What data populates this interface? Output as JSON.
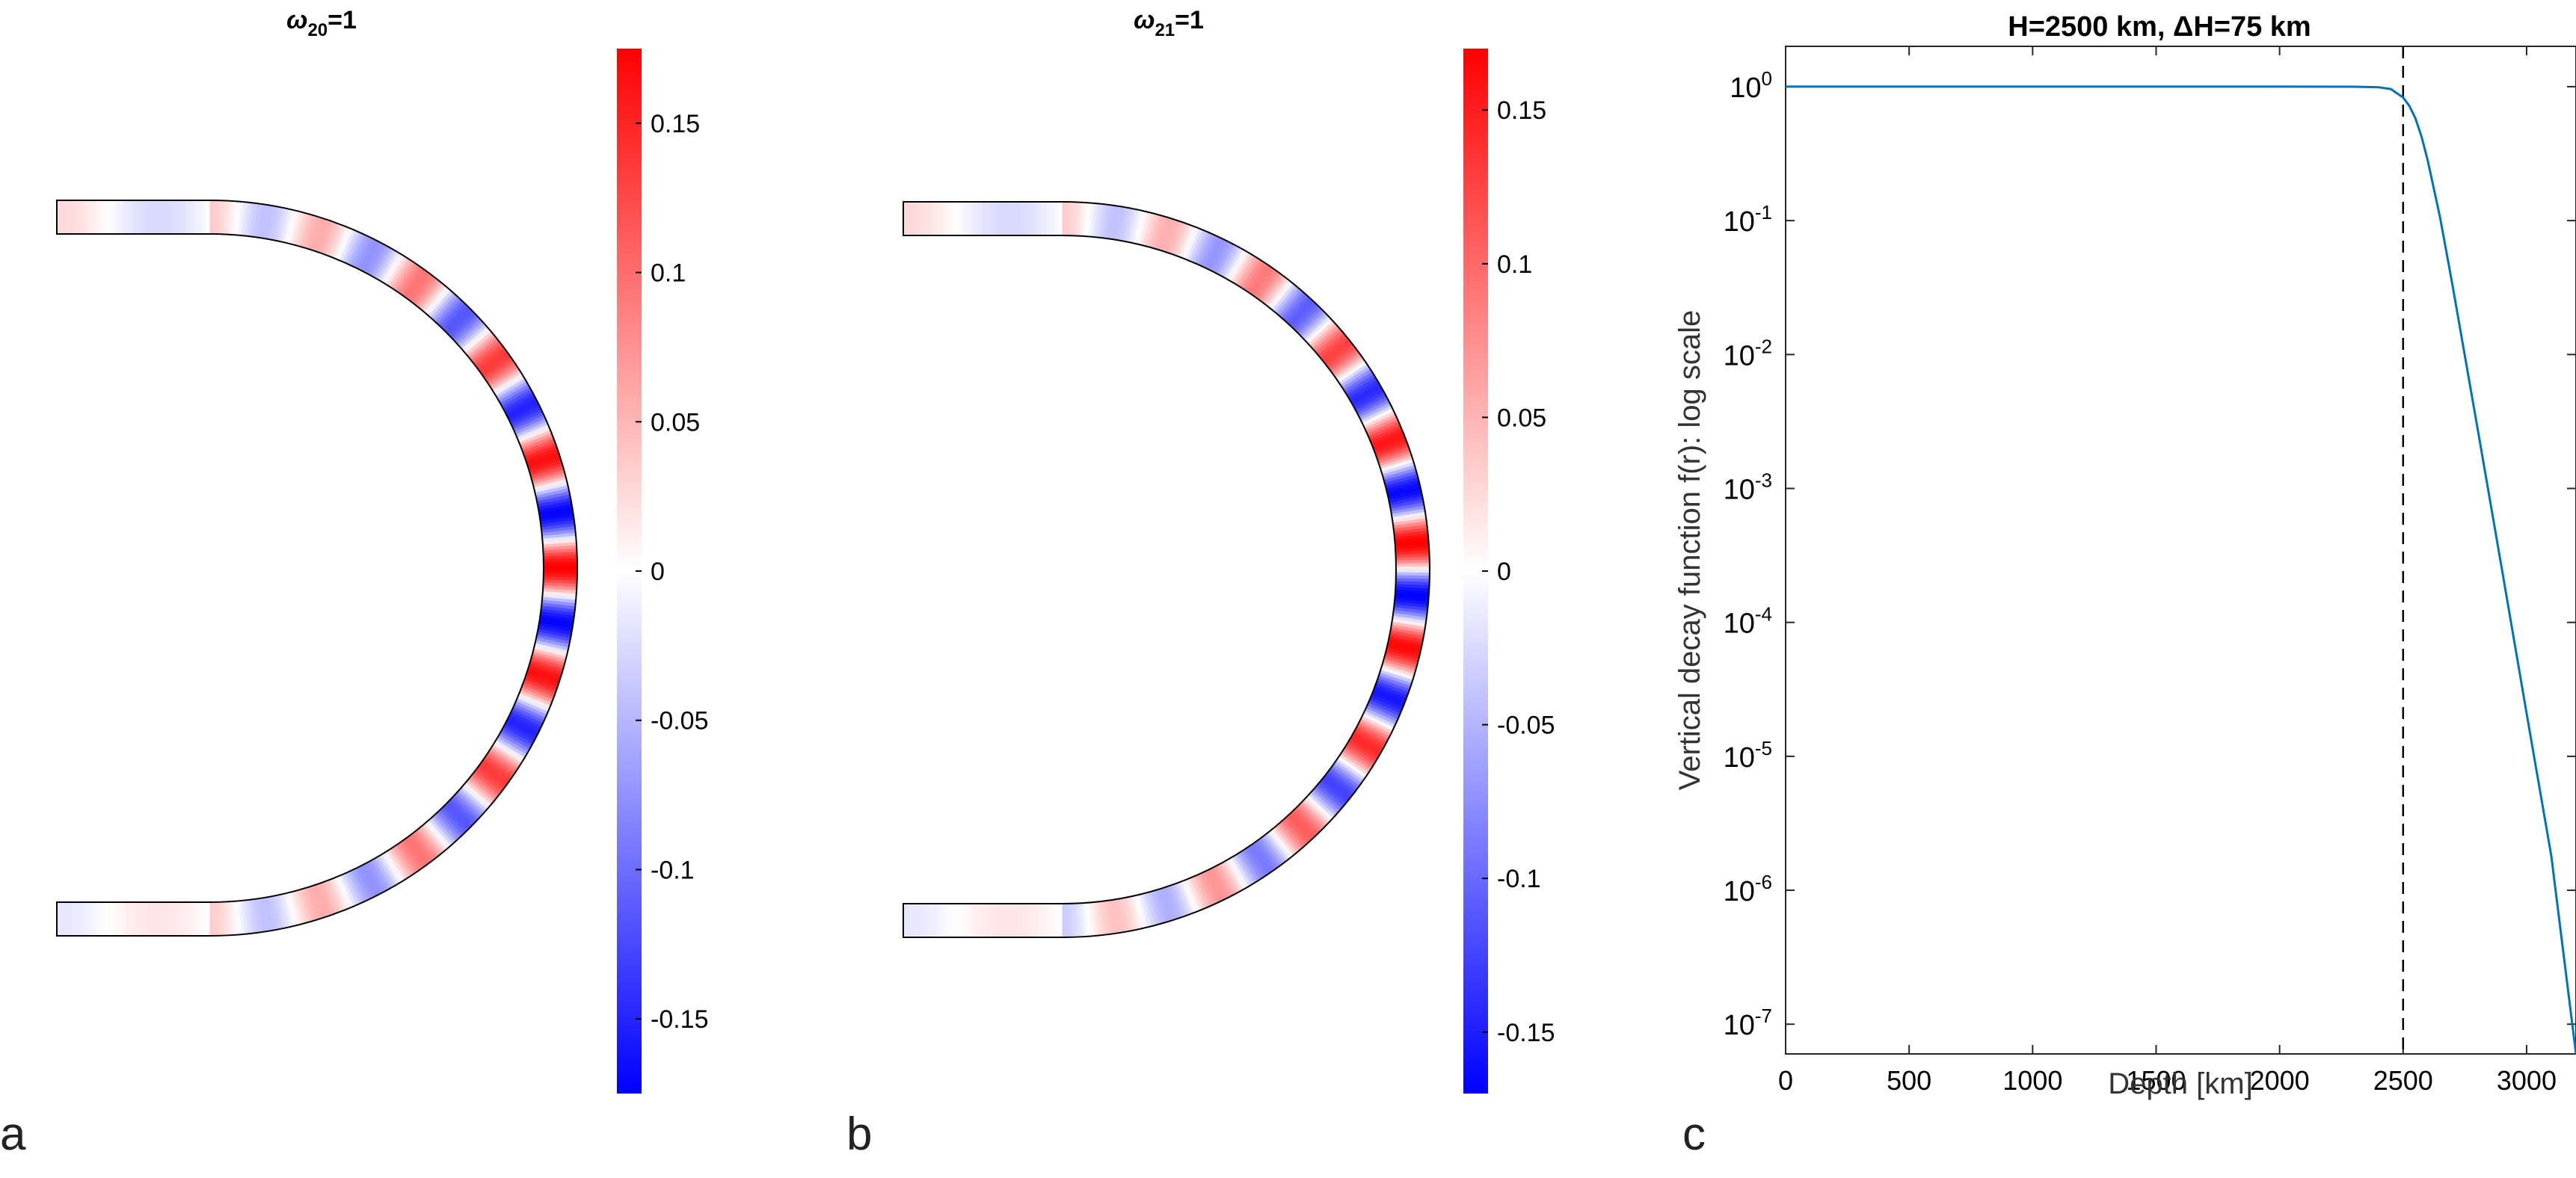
{
  "figure": {
    "panel_labels": [
      "a",
      "b",
      "c"
    ]
  },
  "chart_data": [
    {
      "type": "heatmap",
      "panel": "a",
      "title_symbol": "ω",
      "title_subscript": "20",
      "title_suffix": "=1",
      "shell": "half-annulus",
      "mode_wavenumber": 20,
      "colormap": "blue-white-red",
      "clim": [
        -0.175,
        0.175
      ],
      "colorbar_ticks": [
        0.15,
        0.1,
        0.05,
        0,
        -0.05,
        -0.1,
        -0.15
      ],
      "colorbar_labels": [
        "0.15",
        "0.1",
        "0.05",
        "0",
        "-0.05",
        "-0.1",
        "-0.15"
      ]
    },
    {
      "type": "heatmap",
      "panel": "b",
      "title_symbol": "ω",
      "title_subscript": "21",
      "title_suffix": "=1",
      "shell": "half-annulus",
      "mode_wavenumber": 21,
      "colormap": "blue-white-red",
      "clim": [
        -0.17,
        0.17
      ],
      "colorbar_ticks": [
        0.15,
        0.1,
        0.05,
        0,
        -0.05,
        -0.1,
        -0.15
      ],
      "colorbar_labels": [
        "0.15",
        "0.1",
        "0.05",
        "0",
        "-0.05",
        "-0.1",
        "-0.15"
      ]
    },
    {
      "type": "line",
      "panel": "c",
      "title": "H=2500 km, ΔH=75 km",
      "xlabel": "Depth [km]",
      "ylabel": "Vertical decay function f(r): log scale",
      "xlim": [
        0,
        3200
      ],
      "yscale": "log",
      "ylim": [
        6e-08,
        2
      ],
      "xticks": [
        0,
        500,
        1000,
        1500,
        2000,
        2500,
        3000
      ],
      "xtick_labels": [
        "0",
        "500",
        "1000",
        "1500",
        "2000",
        "2500",
        "3000"
      ],
      "yticks": [
        {
          "exp": 0,
          "base": "10",
          "power": "0"
        },
        {
          "exp": -1,
          "base": "10",
          "power": "-1"
        },
        {
          "exp": -2,
          "base": "10",
          "power": "-2"
        },
        {
          "exp": -3,
          "base": "10",
          "power": "-3"
        },
        {
          "exp": -4,
          "base": "10",
          "power": "-4"
        },
        {
          "exp": -5,
          "base": "10",
          "power": "-5"
        },
        {
          "exp": -6,
          "base": "10",
          "power": "-6"
        },
        {
          "exp": -7,
          "base": "10",
          "power": "-7"
        }
      ],
      "vline_x": 2500,
      "series": [
        {
          "name": "f(r)",
          "color": "#0072bd",
          "x": [
            0,
            500,
            1000,
            1500,
            2000,
            2300,
            2400,
            2450,
            2500,
            2525,
            2550,
            2575,
            2600,
            2650,
            2700,
            2800,
            2900,
            3000,
            3100,
            3200
          ],
          "y": [
            1,
            1,
            1,
            1,
            1,
            0.999,
            0.99,
            0.96,
            0.83,
            0.72,
            0.58,
            0.42,
            0.28,
            0.105,
            0.033,
            0.0029,
            0.00025,
            2.1e-05,
            1.8e-06,
            6e-08
          ]
        }
      ]
    }
  ]
}
